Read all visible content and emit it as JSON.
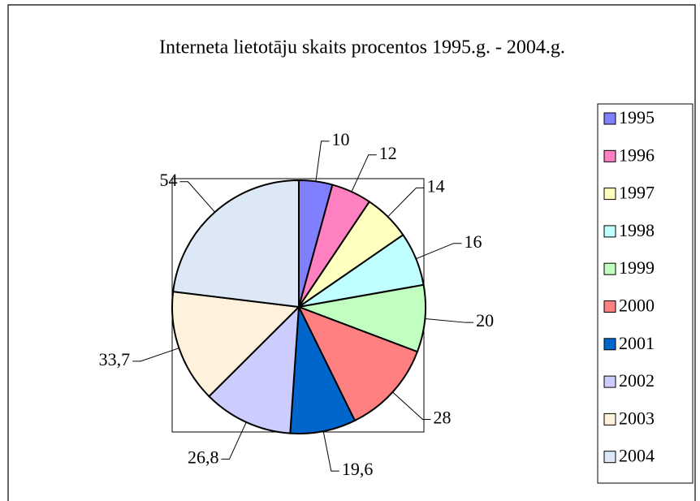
{
  "chart_data": {
    "type": "pie",
    "title": "Interneta lietotāju skaits procentos 1995.g. - 2004.g.",
    "categories": [
      "1995",
      "1996",
      "1997",
      "1998",
      "1999",
      "2000",
      "2001",
      "2002",
      "2003",
      "2004"
    ],
    "values": [
      10,
      12,
      14,
      16,
      20,
      28,
      19.6,
      26.8,
      33.7,
      54
    ],
    "value_labels": [
      "10",
      "12",
      "14",
      "16",
      "20",
      "28",
      "19,6",
      "26,8",
      "33,7",
      "54"
    ],
    "colors": [
      "#8080ff",
      "#ff80c0",
      "#ffffc0",
      "#c0ffff",
      "#c0ffc0",
      "#ff8080",
      "#0066cc",
      "#ccccff",
      "#fff2dc",
      "#dde8f6"
    ],
    "legend": "right"
  }
}
